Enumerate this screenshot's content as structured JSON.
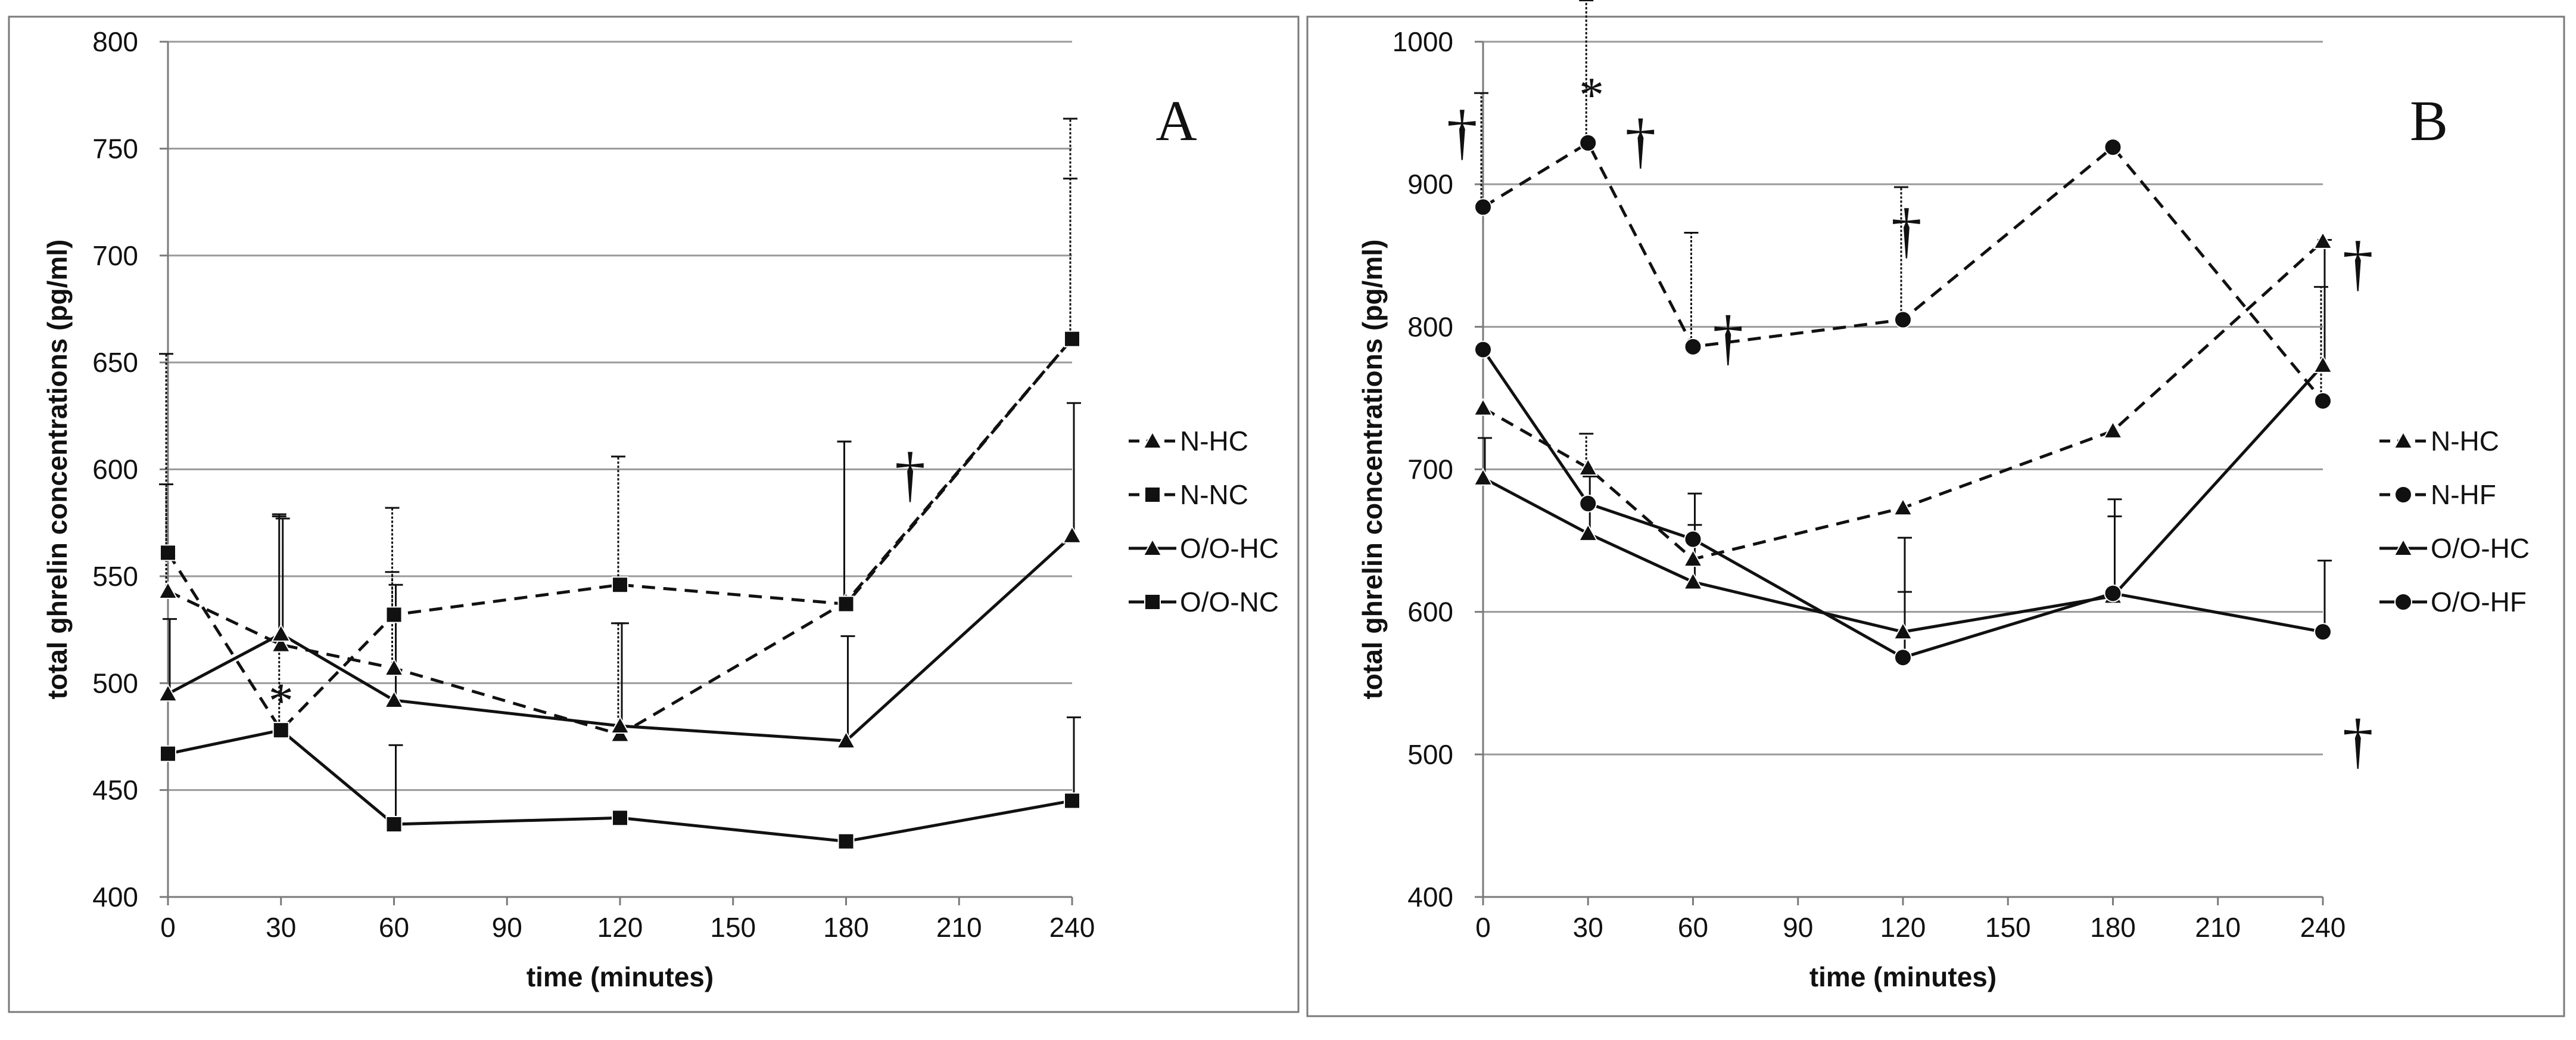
{
  "chart_data": [
    {
      "type": "line",
      "panel_label": "A",
      "xlabel": "time (minutes)",
      "ylabel": "total ghrelin concentrations (pg/ml)",
      "xlim": [
        0,
        240
      ],
      "ylim": [
        400,
        800
      ],
      "xticks": [
        0,
        30,
        60,
        90,
        120,
        150,
        180,
        210,
        240
      ],
      "yticks": [
        400,
        450,
        500,
        550,
        600,
        650,
        700,
        750,
        800
      ],
      "grid": "horizontal",
      "legend_placement": "right",
      "series": [
        {
          "name": "N-HC",
          "style": "dashed",
          "marker": "triangle",
          "x": [
            0,
            30,
            60,
            120,
            180,
            240
          ],
          "y": [
            543,
            518,
            507,
            476,
            538,
            661
          ],
          "err": [
            50,
            60,
            45,
            52,
            75,
            75
          ]
        },
        {
          "name": "N-NC",
          "style": "dashed",
          "marker": "square",
          "x": [
            0,
            30,
            60,
            120,
            180,
            240
          ],
          "y": [
            561,
            478,
            532,
            546,
            537,
            661
          ],
          "err": [
            93,
            101,
            50,
            60,
            76,
            103
          ]
        },
        {
          "name": "O/O-HC",
          "style": "solid",
          "marker": "triangle",
          "x": [
            0,
            30,
            60,
            120,
            180,
            240
          ],
          "y": [
            495,
            523,
            492,
            480,
            473,
            569
          ],
          "err": [
            35,
            54,
            54,
            48,
            49,
            62
          ]
        },
        {
          "name": "O/O-NC",
          "style": "solid",
          "marker": "square",
          "x": [
            0,
            30,
            60,
            120,
            180,
            240
          ],
          "y": [
            467,
            478,
            434,
            437,
            426,
            445
          ],
          "err": [
            0,
            0,
            37,
            0,
            0,
            39
          ]
        }
      ],
      "annotations": [
        {
          "text": "*",
          "x": 30,
          "y": 484
        },
        {
          "text": "†",
          "x": 197,
          "y": 588
        }
      ]
    },
    {
      "type": "line",
      "panel_label": "B",
      "xlabel": "time (minutes)",
      "ylabel": "total ghrelin concentrations (pg/ml)",
      "xlim": [
        0,
        240
      ],
      "ylim": [
        400,
        1000
      ],
      "xticks": [
        0,
        30,
        60,
        90,
        120,
        150,
        180,
        210,
        240
      ],
      "yticks": [
        400,
        500,
        600,
        700,
        800,
        900,
        1000
      ],
      "grid": "horizontal",
      "legend_placement": "right",
      "series": [
        {
          "name": "N-HC",
          "style": "dashed",
          "marker": "triangle",
          "x": [
            0,
            30,
            60,
            120,
            180,
            240
          ],
          "y": [
            743,
            701,
            637,
            673,
            727,
            860
          ],
          "err": [
            0,
            24,
            0,
            0,
            0,
            0
          ]
        },
        {
          "name": "N-HF",
          "style": "dashed",
          "marker": "circle",
          "x": [
            0,
            30,
            60,
            120,
            180,
            240
          ],
          "y": [
            884,
            929,
            786,
            805,
            926,
            748
          ],
          "err": [
            80,
            100,
            80,
            93,
            0,
            80
          ]
        },
        {
          "name": "O/O-HC",
          "style": "solid",
          "marker": "triangle",
          "x": [
            0,
            30,
            60,
            120,
            180,
            240
          ],
          "y": [
            694,
            655,
            621,
            586,
            611,
            773
          ],
          "err": [
            28,
            40,
            40,
            66,
            68,
            88
          ]
        },
        {
          "name": "O/O-HF",
          "style": "solid",
          "marker": "circle",
          "x": [
            0,
            30,
            60,
            120,
            180,
            240
          ],
          "y": [
            784,
            676,
            651,
            568,
            613,
            586
          ],
          "err": [
            0,
            0,
            32,
            46,
            54,
            50
          ]
        }
      ],
      "annotations": [
        {
          "text": "†",
          "x": -6,
          "y": 922
        },
        {
          "text": "*",
          "x": 31,
          "y": 951
        },
        {
          "text": "†",
          "x": 45,
          "y": 916
        },
        {
          "text": "†",
          "x": 70,
          "y": 778
        },
        {
          "text": "†",
          "x": 121,
          "y": 853
        },
        {
          "text": "†",
          "x": 250,
          "y": 830
        },
        {
          "text": "†",
          "x": 250,
          "y": 495
        }
      ]
    }
  ]
}
